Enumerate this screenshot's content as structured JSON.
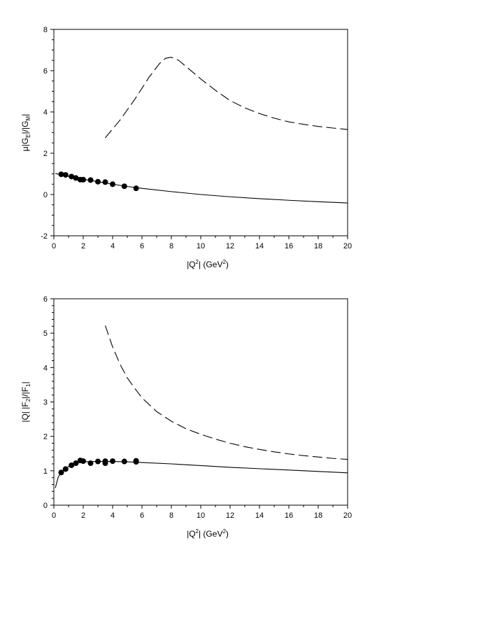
{
  "chart_data": [
    {
      "type": "line",
      "ylabel": {
        "pre": "μ|G",
        "sub1": "E",
        "mid": "|/|G",
        "sub2": "M",
        "post": "|"
      },
      "xlabel": {
        "pre": "|Q",
        "sup": "2",
        "mid": "| (GeV",
        "sup2": "2",
        "post": ")"
      },
      "xlim": [
        0,
        20
      ],
      "ylim": [
        -2,
        8
      ],
      "xticks": [
        "0",
        "2",
        "4",
        "6",
        "8",
        "10",
        "12",
        "14",
        "16",
        "18",
        "20"
      ],
      "yticks": [
        "-2",
        "0",
        "2",
        "4",
        "6",
        "8"
      ],
      "series": [
        {
          "style": "solid",
          "x": [
            0.1,
            0.5,
            1,
            2,
            3,
            4,
            5,
            6,
            8,
            10,
            12,
            14,
            16,
            18,
            20
          ],
          "y": [
            1.02,
            0.95,
            0.88,
            0.74,
            0.62,
            0.5,
            0.39,
            0.3,
            0.14,
            0.0,
            -0.11,
            -0.2,
            -0.28,
            -0.35,
            -0.41
          ]
        },
        {
          "style": "dashed",
          "x": [
            3.5,
            4.5,
            5.5,
            6.5,
            7.2,
            7.6,
            8.0,
            8.5,
            9.0,
            10,
            11,
            12,
            13,
            14,
            15,
            16,
            17,
            18,
            19,
            20
          ],
          "y": [
            2.75,
            3.6,
            4.6,
            5.7,
            6.35,
            6.6,
            6.65,
            6.5,
            6.2,
            5.6,
            5.05,
            4.55,
            4.2,
            3.92,
            3.7,
            3.52,
            3.4,
            3.3,
            3.22,
            3.15
          ]
        },
        {
          "style": "points",
          "x": [
            0.5,
            0.8,
            1.2,
            1.5,
            1.8,
            2.0,
            2.5,
            3.0,
            3.5,
            4.0,
            4.8,
            5.6
          ],
          "y": [
            0.98,
            0.95,
            0.87,
            0.8,
            0.72,
            0.72,
            0.7,
            0.62,
            0.6,
            0.5,
            0.4,
            0.3
          ]
        }
      ]
    },
    {
      "type": "line",
      "ylabel": {
        "pre": "|Q| |F",
        "sub1": "2",
        "mid": "|/|F",
        "sub2": "1",
        "post": "|"
      },
      "xlabel": {
        "pre": "|Q",
        "sup": "2",
        "mid": "| (GeV",
        "sup2": "2",
        "post": ")"
      },
      "xlim": [
        0,
        20
      ],
      "ylim": [
        0,
        6
      ],
      "xticks": [
        "0",
        "2",
        "4",
        "6",
        "8",
        "10",
        "12",
        "14",
        "16",
        "18",
        "20"
      ],
      "yticks": [
        "0",
        "1",
        "2",
        "3",
        "4",
        "5",
        "6"
      ],
      "series": [
        {
          "style": "solid",
          "x": [
            0.1,
            0.3,
            0.6,
            1.0,
            1.5,
            2.0,
            3.0,
            4.0,
            5.0,
            6.0,
            8.0,
            10,
            12,
            14,
            16,
            18,
            20
          ],
          "y": [
            0.5,
            0.82,
            1.0,
            1.12,
            1.22,
            1.26,
            1.27,
            1.27,
            1.26,
            1.24,
            1.2,
            1.15,
            1.1,
            1.06,
            1.02,
            0.98,
            0.94
          ]
        },
        {
          "style": "dashed",
          "x": [
            3.5,
            4.0,
            4.5,
            5.0,
            5.5,
            6.0,
            7.0,
            8.0,
            9.0,
            10,
            11,
            12,
            13,
            14,
            15,
            16,
            17,
            18,
            19,
            20
          ],
          "y": [
            5.22,
            4.6,
            4.1,
            3.7,
            3.4,
            3.12,
            2.72,
            2.44,
            2.22,
            2.06,
            1.92,
            1.8,
            1.7,
            1.62,
            1.55,
            1.49,
            1.44,
            1.4,
            1.36,
            1.33
          ]
        },
        {
          "style": "points",
          "x": [
            0.5,
            0.8,
            1.2,
            1.5,
            1.8,
            2.0,
            2.5,
            3.0,
            3.5,
            3.5,
            4.0,
            4.8,
            5.6,
            5.6
          ],
          "y": [
            0.95,
            1.05,
            1.16,
            1.22,
            1.3,
            1.28,
            1.22,
            1.27,
            1.22,
            1.28,
            1.28,
            1.27,
            1.26,
            1.29
          ]
        }
      ]
    }
  ]
}
